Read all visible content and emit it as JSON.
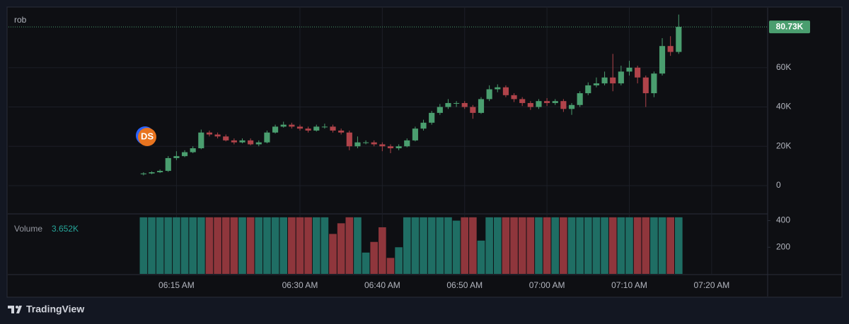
{
  "chart_data": {
    "type": "candlestick",
    "title": "rob",
    "x": [
      11,
      12,
      13,
      14,
      15,
      16,
      17,
      18,
      19,
      20,
      21,
      22,
      23,
      24,
      25,
      26,
      27,
      28,
      29,
      30,
      31,
      32,
      33,
      34,
      35,
      36,
      37,
      38,
      39,
      40,
      41,
      42,
      43,
      44,
      45,
      46,
      47,
      48,
      49,
      50,
      51,
      52,
      53,
      54,
      55,
      56,
      57,
      58,
      59,
      60,
      61,
      62,
      63,
      64,
      65,
      66,
      67,
      68,
      69,
      70,
      71,
      72,
      73,
      74,
      75,
      76
    ],
    "open": [
      5800,
      6200,
      6800,
      7500,
      14000,
      15000,
      17000,
      19000,
      27000,
      26000,
      25000,
      23000,
      22000,
      23000,
      21000,
      22000,
      27000,
      30000,
      31000,
      30000,
      29000,
      28000,
      30000,
      30000,
      28000,
      27000,
      20000,
      22000,
      22000,
      21000,
      20000,
      19000,
      20000,
      23000,
      29000,
      32000,
      37000,
      40000,
      42000,
      42000,
      40000,
      37000,
      44000,
      49000,
      50000,
      46000,
      44000,
      42000,
      40000,
      43000,
      42000,
      43000,
      39000,
      41000,
      47000,
      51000,
      52000,
      55000,
      52000,
      58000,
      60000,
      55000,
      47000,
      57000,
      71000,
      68000
    ],
    "high": [
      6800,
      7300,
      8200,
      15000,
      17500,
      18000,
      20000,
      28500,
      28000,
      27000,
      26000,
      24000,
      24000,
      24000,
      23000,
      28000,
      31000,
      32500,
      32000,
      31000,
      30000,
      31000,
      31500,
      31000,
      29000,
      28000,
      25000,
      23000,
      23000,
      22000,
      21000,
      21000,
      24000,
      30000,
      33500,
      38000,
      41500,
      44000,
      43000,
      43000,
      41000,
      45000,
      51000,
      51500,
      51000,
      47000,
      45000,
      43000,
      44000,
      44500,
      44000,
      44000,
      42000,
      48000,
      52500,
      55000,
      58000,
      67000,
      61000,
      63500,
      61000,
      56000,
      58000,
      75000,
      76000,
      87000
    ],
    "low": [
      5200,
      5800,
      6400,
      7000,
      13000,
      14500,
      16500,
      18500,
      25000,
      24000,
      22500,
      21000,
      21500,
      20500,
      20000,
      21500,
      26500,
      29500,
      29000,
      28000,
      27000,
      27500,
      29000,
      27000,
      26000,
      18000,
      19000,
      21000,
      20000,
      17500,
      16500,
      18000,
      19500,
      22500,
      28000,
      31000,
      36000,
      39000,
      40000,
      39000,
      34000,
      36500,
      43000,
      47500,
      45000,
      42500,
      40500,
      38500,
      39000,
      40500,
      41000,
      37500,
      36000,
      40000,
      46000,
      50000,
      51000,
      48000,
      51000,
      56000,
      52000,
      40000,
      45000,
      56000,
      66000,
      67000
    ],
    "close": [
      6200,
      6800,
      7500,
      14000,
      15000,
      17000,
      19000,
      27000,
      26000,
      25000,
      23000,
      22000,
      23000,
      21000,
      22000,
      27000,
      30000,
      31000,
      30000,
      29000,
      28000,
      30000,
      30000,
      28000,
      27000,
      20000,
      22000,
      22000,
      21000,
      20000,
      19000,
      20000,
      23000,
      29000,
      32000,
      37000,
      40000,
      42000,
      42000,
      40000,
      37000,
      44000,
      49000,
      50000,
      46000,
      44000,
      42000,
      40000,
      43000,
      42000,
      43000,
      39000,
      41000,
      47000,
      51000,
      52000,
      55000,
      52000,
      58000,
      60000,
      55000,
      47000,
      57000,
      71000,
      68000,
      80730
    ],
    "up_color": "#4a9e6f",
    "down_color": "#b0434a",
    "xlim": [
      -5.4,
      86.8
    ],
    "xticks": [
      {
        "value": 15,
        "label": "06:15 AM"
      },
      {
        "value": 30,
        "label": "06:30 AM"
      },
      {
        "value": 40,
        "label": "06:40 AM"
      },
      {
        "value": 50,
        "label": "06:50 AM"
      },
      {
        "value": 60,
        "label": "07:00 AM"
      },
      {
        "value": 70,
        "label": "07:10 AM"
      },
      {
        "value": 80,
        "label": "07:20 AM"
      }
    ],
    "ylim": [
      -13300,
      90100
    ],
    "yticks": [
      0,
      {
        "value": 20000,
        "label": "20K"
      },
      {
        "value": 40000,
        "label": "40K"
      },
      {
        "value": 60000,
        "label": "60K"
      }
    ],
    "last_price": {
      "value": 80730,
      "label": "80.73K"
    },
    "grid": true,
    "volume": {
      "label": "Volume",
      "value": 3652,
      "value_label": "3.652K",
      "values": [
        425,
        425,
        425,
        425,
        425,
        425,
        425,
        425,
        425,
        425,
        425,
        425,
        425,
        425,
        425,
        425,
        425,
        425,
        425,
        425,
        425,
        425,
        425,
        300,
        380,
        425,
        425,
        160,
        240,
        350,
        120,
        200,
        425,
        425,
        425,
        425,
        425,
        425,
        400,
        425,
        425,
        250,
        425,
        425,
        425,
        425,
        425,
        425,
        425,
        425,
        425,
        425,
        425,
        425,
        425,
        425,
        425,
        425,
        425,
        425,
        425,
        425,
        425,
        425,
        425,
        425
      ],
      "ylim": [
        0,
        440
      ],
      "yticks": [
        200,
        400
      ],
      "up_color": "#1f6e64",
      "down_color": "#8f363c"
    }
  },
  "marker": "DS",
  "brand": "TradingView"
}
